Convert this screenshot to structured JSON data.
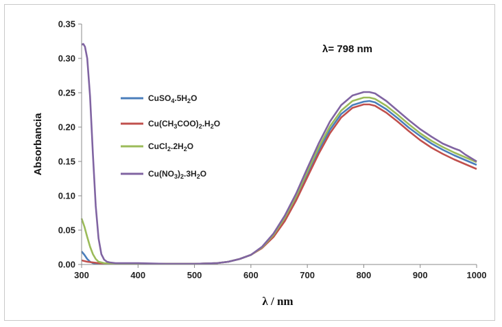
{
  "chart_data": {
    "type": "line",
    "title": "",
    "xlabel": "λ / nm",
    "ylabel": "Absorbancia",
    "xlim": [
      300,
      1000
    ],
    "ylim": [
      0,
      0.35
    ],
    "x_ticks": [
      "300",
      "400",
      "500",
      "600",
      "700",
      "800",
      "900",
      "1000"
    ],
    "y_ticks": [
      "0.00",
      "0.05",
      "0.10",
      "0.15",
      "0.20",
      "0.25",
      "0.30",
      "0.35"
    ],
    "annotation": "λ= 798 nm",
    "grid": false,
    "legend_position": "left",
    "series": [
      {
        "name": "CuSO4.5H2O",
        "legend": {
          "base": "CuSO",
          "parts": [
            [
              "4",
              "sub"
            ],
            [
              ".5H",
              ""
            ],
            [
              "2",
              "sub"
            ],
            [
              "O",
              ""
            ]
          ]
        },
        "color": "#4a7ebb",
        "x": [
          300,
          305,
          310,
          315,
          320,
          330,
          340,
          360,
          400,
          450,
          500,
          540,
          560,
          580,
          600,
          620,
          640,
          660,
          680,
          700,
          720,
          740,
          760,
          780,
          800,
          810,
          820,
          840,
          860,
          880,
          900,
          920,
          940,
          960,
          980,
          1000
        ],
        "y": [
          0.019,
          0.014,
          0.008,
          0.004,
          0.002,
          0.001,
          0.001,
          0.001,
          0.001,
          0.001,
          0.001,
          0.002,
          0.004,
          0.008,
          0.014,
          0.025,
          0.042,
          0.066,
          0.097,
          0.132,
          0.166,
          0.196,
          0.219,
          0.232,
          0.237,
          0.238,
          0.236,
          0.226,
          0.213,
          0.199,
          0.187,
          0.176,
          0.167,
          0.159,
          0.152,
          0.145
        ]
      },
      {
        "name": "Cu(CH3COO)2.H2O",
        "legend": {
          "base": "Cu(CH",
          "parts": [
            [
              "3",
              "sub"
            ],
            [
              "COO)",
              ""
            ],
            [
              "2",
              "sub"
            ],
            [
              ".H",
              ""
            ],
            [
              "2",
              "sub"
            ],
            [
              "O",
              ""
            ]
          ]
        },
        "color": "#c0504d",
        "x": [
          300,
          305,
          310,
          320,
          330,
          340,
          360,
          400,
          450,
          500,
          540,
          560,
          580,
          600,
          620,
          640,
          660,
          680,
          700,
          720,
          740,
          760,
          780,
          800,
          810,
          820,
          840,
          860,
          880,
          900,
          920,
          940,
          960,
          980,
          1000
        ],
        "y": [
          0.006,
          0.005,
          0.004,
          0.003,
          0.002,
          0.001,
          0.001,
          0.001,
          0.001,
          0.001,
          0.002,
          0.004,
          0.008,
          0.014,
          0.024,
          0.04,
          0.063,
          0.093,
          0.127,
          0.161,
          0.191,
          0.214,
          0.228,
          0.233,
          0.233,
          0.231,
          0.221,
          0.208,
          0.194,
          0.181,
          0.17,
          0.161,
          0.153,
          0.146,
          0.139
        ]
      },
      {
        "name": "CuCl2.2H2O",
        "legend": {
          "base": "CuCl",
          "parts": [
            [
              "2",
              "sub"
            ],
            [
              ".2H",
              ""
            ],
            [
              "2",
              "sub"
            ],
            [
              "O",
              ""
            ]
          ]
        },
        "color": "#9bbb59",
        "x": [
          300,
          305,
          310,
          315,
          320,
          325,
          330,
          340,
          360,
          400,
          450,
          500,
          540,
          560,
          580,
          600,
          620,
          640,
          660,
          680,
          700,
          720,
          740,
          760,
          780,
          800,
          810,
          820,
          840,
          860,
          880,
          900,
          920,
          940,
          960,
          980,
          1000
        ],
        "y": [
          0.067,
          0.055,
          0.04,
          0.026,
          0.015,
          0.008,
          0.004,
          0.002,
          0.001,
          0.001,
          0.001,
          0.001,
          0.002,
          0.004,
          0.008,
          0.014,
          0.025,
          0.043,
          0.068,
          0.099,
          0.135,
          0.17,
          0.201,
          0.224,
          0.238,
          0.243,
          0.243,
          0.241,
          0.231,
          0.218,
          0.204,
          0.191,
          0.18,
          0.171,
          0.163,
          0.156,
          0.149
        ]
      },
      {
        "name": "Cu(NO3)2.3H2O",
        "legend": {
          "base": "Cu(NO",
          "parts": [
            [
              "3",
              "sub"
            ],
            [
              ")",
              ""
            ],
            [
              "2",
              "sub"
            ],
            [
              ".3H",
              ""
            ],
            [
              "2",
              "sub"
            ],
            [
              "O",
              ""
            ]
          ]
        },
        "color": "#8064a2",
        "x": [
          300,
          303,
          306,
          310,
          315,
          320,
          325,
          330,
          335,
          340,
          345,
          350,
          360,
          380,
          400,
          450,
          500,
          540,
          560,
          580,
          600,
          620,
          640,
          660,
          680,
          700,
          720,
          740,
          760,
          780,
          800,
          810,
          820,
          840,
          860,
          880,
          900,
          920,
          940,
          960,
          970,
          980,
          1000
        ],
        "y": [
          0.32,
          0.321,
          0.317,
          0.3,
          0.245,
          0.16,
          0.085,
          0.038,
          0.015,
          0.007,
          0.004,
          0.003,
          0.002,
          0.002,
          0.002,
          0.001,
          0.001,
          0.002,
          0.004,
          0.008,
          0.014,
          0.026,
          0.045,
          0.071,
          0.103,
          0.14,
          0.176,
          0.208,
          0.232,
          0.246,
          0.251,
          0.251,
          0.249,
          0.238,
          0.224,
          0.21,
          0.197,
          0.186,
          0.176,
          0.169,
          0.166,
          0.16,
          0.15
        ]
      }
    ]
  }
}
